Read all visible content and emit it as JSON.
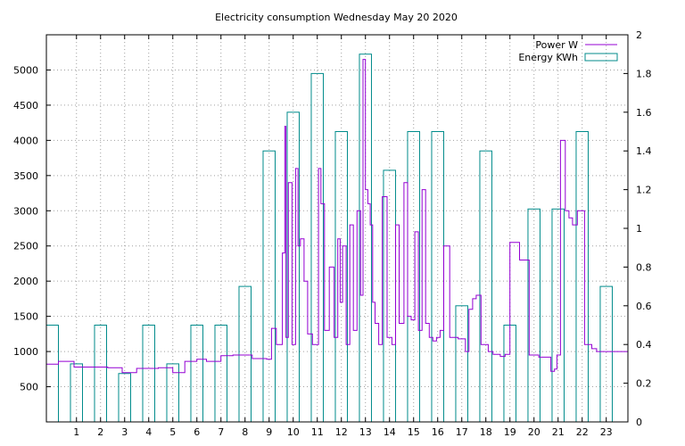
{
  "chart_data": {
    "type": "line",
    "title": "Electricity consumption Wednesday May 20 2020",
    "xlabel": "",
    "ylabel": "",
    "y2label": "",
    "xlim": [
      -0.25,
      23.9
    ],
    "ylim": [
      0,
      5500
    ],
    "y2lim": [
      0,
      2
    ],
    "x_ticks": [
      "1",
      "2",
      "3",
      "4",
      "5",
      "6",
      "7",
      "8",
      "9",
      "10",
      "11",
      "12",
      "13",
      "14",
      "15",
      "16",
      "17",
      "18",
      "19",
      "20",
      "21",
      "22",
      "23"
    ],
    "y_ticks": [
      "500",
      "1000",
      "1500",
      "2000",
      "2500",
      "3000",
      "3500",
      "4000",
      "4500",
      "5000"
    ],
    "y2_ticks": [
      "0",
      "0.2",
      "0.4",
      "0.6",
      "0.8",
      "1",
      "1.2",
      "1.4",
      "1.6",
      "1.8",
      "2"
    ],
    "grid": true,
    "legend_position": "top-right",
    "series": [
      {
        "name": "Power W",
        "axis": "y",
        "style": "steps",
        "color": "#9400d3",
        "x": [
          -0.25,
          0.25,
          0.9,
          2.3,
          2.9,
          3.5,
          4.4,
          5.0,
          5.5,
          6.0,
          6.4,
          7.0,
          7.5,
          8.3,
          8.9,
          9.1,
          9.3,
          9.55,
          9.65,
          9.7,
          9.8,
          9.95,
          10.1,
          10.2,
          10.3,
          10.45,
          10.6,
          10.8,
          11.05,
          11.15,
          11.3,
          11.5,
          11.7,
          11.85,
          11.95,
          12.05,
          12.2,
          12.35,
          12.5,
          12.65,
          12.8,
          12.9,
          13.0,
          13.1,
          13.2,
          13.3,
          13.4,
          13.55,
          13.7,
          13.9,
          14.1,
          14.25,
          14.4,
          14.6,
          14.75,
          14.9,
          15.05,
          15.2,
          15.35,
          15.5,
          15.65,
          15.8,
          15.95,
          16.1,
          16.25,
          16.5,
          16.85,
          17.15,
          17.3,
          17.45,
          17.6,
          17.8,
          18.1,
          18.3,
          18.6,
          18.8,
          19.0,
          19.4,
          19.8,
          20.2,
          20.7,
          20.85,
          20.95,
          21.1,
          21.3,
          21.45,
          21.6,
          21.8,
          22.1,
          22.4,
          22.6,
          22.7,
          22.85,
          23.0,
          23.2,
          23.35,
          23.5,
          23.7,
          23.9
        ],
        "y": [
          820,
          860,
          780,
          770,
          700,
          760,
          770,
          700,
          860,
          890,
          860,
          940,
          950,
          900,
          890,
          1330,
          1100,
          2400,
          4200,
          1200,
          3400,
          1100,
          3600,
          2500,
          2600,
          2000,
          1250,
          1100,
          3600,
          3100,
          1300,
          2200,
          1200,
          2600,
          1700,
          2500,
          1100,
          2800,
          1300,
          3000,
          1800,
          5150,
          3300,
          3100,
          2800,
          1700,
          1400,
          1100,
          3200,
          1200,
          1100,
          2800,
          1400,
          3400,
          1500,
          1450,
          2700,
          1300,
          3300,
          1400,
          1200,
          1150,
          1200,
          1300,
          2500,
          1200,
          1180,
          1000,
          1600,
          1750,
          1800,
          1100,
          1000,
          960,
          930,
          960,
          2550,
          2300,
          950,
          920,
          720,
          750,
          950,
          4000,
          3000,
          2900,
          2800,
          3000,
          1100,
          1040,
          1000,
          1000,
          1000,
          1000,
          1000,
          1000,
          1000,
          1000,
          1000
        ],
        "value_summary": {
          "min": 700,
          "max": 5150
        }
      },
      {
        "name": "Energy KWh",
        "axis": "y2",
        "style": "boxes",
        "color": "#008b8b",
        "x": [
          0,
          1,
          2,
          3,
          4,
          5,
          6,
          7,
          8,
          9,
          10,
          11,
          12,
          13,
          14,
          15,
          16,
          17,
          18,
          19,
          20,
          21,
          22,
          23
        ],
        "y": [
          0.5,
          0.3,
          0.5,
          0.25,
          0.5,
          0.3,
          0.5,
          0.5,
          0.7,
          1.4,
          1.6,
          1.8,
          1.5,
          1.9,
          1.3,
          1.5,
          1.5,
          0.6,
          1.4,
          0.5,
          1.1,
          1.1,
          1.5,
          0.7
        ]
      }
    ]
  }
}
